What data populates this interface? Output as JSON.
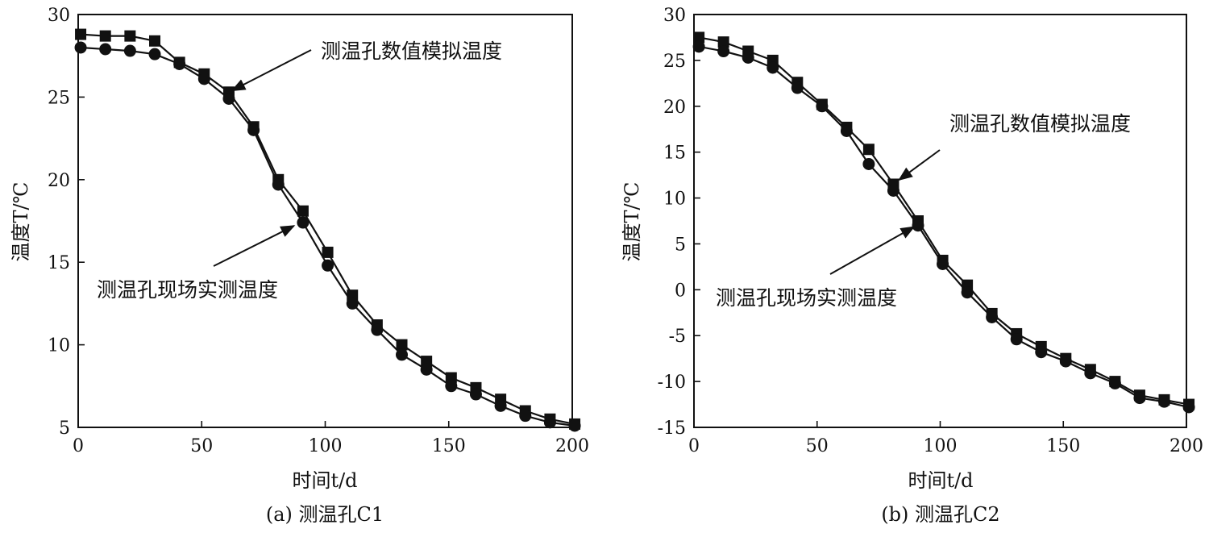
{
  "chart_data": [
    {
      "type": "line",
      "caption": "(a) 测温孔C1",
      "xlabel": "时间t/d",
      "ylabel": "温度T/℃",
      "xlim": [
        0,
        200
      ],
      "ylim": [
        5,
        30
      ],
      "xticks": [
        0,
        50,
        100,
        150,
        200
      ],
      "yticks": [
        5,
        10,
        15,
        20,
        25,
        30
      ],
      "x": [
        1,
        11,
        21,
        31,
        41,
        51,
        61,
        71,
        81,
        91,
        101,
        111,
        121,
        131,
        141,
        151,
        161,
        171,
        181,
        191,
        201
      ],
      "series": [
        {
          "name": "测温孔数值模拟温度",
          "marker": "square",
          "values": [
            28.8,
            28.7,
            28.7,
            28.4,
            27.1,
            26.4,
            25.3,
            23.2,
            20.0,
            18.1,
            15.6,
            13.0,
            11.2,
            10.0,
            9.0,
            8.0,
            7.4,
            6.7,
            6.0,
            5.5,
            5.2
          ]
        },
        {
          "name": "测温孔现场实测温度",
          "marker": "circle",
          "values": [
            28.0,
            27.9,
            27.8,
            27.6,
            27.0,
            26.1,
            24.9,
            23.0,
            19.7,
            17.4,
            14.8,
            12.5,
            10.9,
            9.4,
            8.5,
            7.5,
            7.0,
            6.3,
            5.7,
            5.3,
            5.1
          ]
        }
      ],
      "annotations": [
        {
          "text": "测温孔数值模拟温度",
          "points_to": {
            "x": 61,
            "y": 25.3
          }
        },
        {
          "text": "测温孔现场实测温度",
          "points_to": {
            "x": 88,
            "y": 17.4
          }
        }
      ],
      "grid": false
    },
    {
      "type": "line",
      "caption": "(b) 测温孔C2",
      "xlabel": "时间t/d",
      "ylabel": "温度T/℃",
      "xlim": [
        0,
        200
      ],
      "ylim": [
        -15,
        30
      ],
      "xticks": [
        0,
        50,
        100,
        150,
        200
      ],
      "yticks": [
        -15,
        -10,
        -5,
        0,
        5,
        10,
        15,
        20,
        25,
        30
      ],
      "x": [
        2,
        12,
        22,
        32,
        42,
        52,
        62,
        71,
        81,
        91,
        101,
        111,
        121,
        131,
        141,
        151,
        161,
        171,
        181,
        191,
        201
      ],
      "series": [
        {
          "name": "测温孔数值模拟温度",
          "marker": "square",
          "values": [
            27.5,
            27.0,
            26.0,
            25.0,
            22.6,
            20.2,
            17.7,
            15.3,
            11.5,
            7.5,
            3.2,
            0.5,
            -2.6,
            -4.8,
            -6.2,
            -7.5,
            -8.7,
            -10.0,
            -11.5,
            -12.0,
            -12.5
          ]
        },
        {
          "name": "测温孔现场实测温度",
          "marker": "circle",
          "values": [
            26.5,
            26.0,
            25.3,
            24.2,
            22.0,
            20.0,
            17.3,
            13.7,
            10.8,
            7.0,
            2.8,
            -0.3,
            -3.0,
            -5.4,
            -6.8,
            -7.8,
            -9.1,
            -10.2,
            -11.8,
            -12.2,
            -12.8
          ]
        }
      ],
      "annotations": [
        {
          "text": "测温孔数值模拟温度",
          "points_to": {
            "x": 82,
            "y": 11.8
          }
        },
        {
          "text": "测温孔现场实测温度",
          "points_to": {
            "x": 90,
            "y": 7.2
          }
        }
      ],
      "grid": false
    }
  ]
}
